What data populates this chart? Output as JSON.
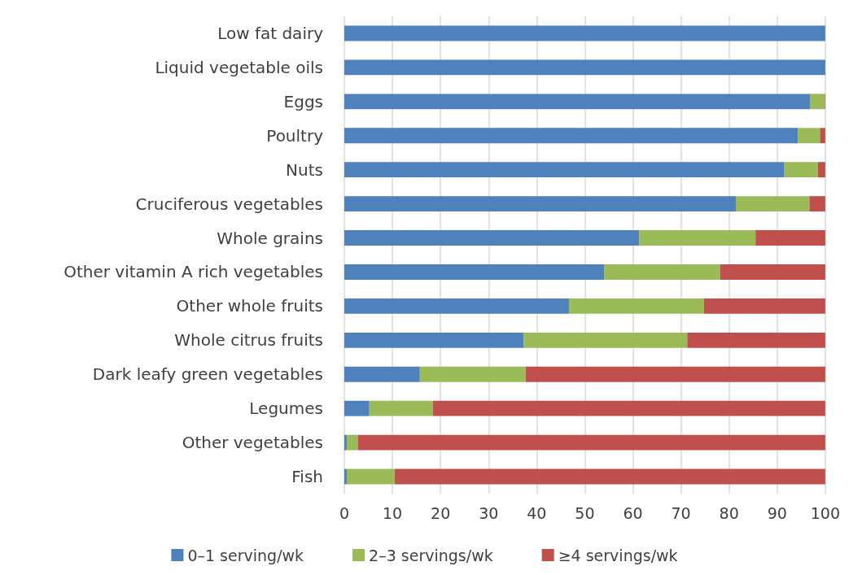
{
  "chart_data": {
    "type": "bar",
    "orientation": "horizontal",
    "stacked": true,
    "categories": [
      "Low fat dairy",
      "Liquid vegetable oils",
      "Eggs",
      "Poultry",
      "Nuts",
      "Cruciferous vegetables",
      "Whole grains",
      "Other vitamin A rich vegetables",
      "Other whole fruits",
      "Whole citrus fruits",
      "Dark leafy green vegetables",
      "Legumes",
      "Other vegetables",
      "Fish"
    ],
    "series": [
      {
        "name": "0–1 serving/wk",
        "color": "#4f81bd",
        "values": [
          100,
          100,
          96.8,
          94.3,
          91.5,
          81.4,
          61.3,
          54.0,
          46.7,
          37.3,
          15.7,
          5.2,
          0.5,
          0.5
        ]
      },
      {
        "name": "2–3 servings/wk",
        "color": "#9bbb59",
        "values": [
          0,
          0,
          3.1,
          4.6,
          7.0,
          15.3,
          24.2,
          24.1,
          28.1,
          34.0,
          22.0,
          13.2,
          2.3,
          10.0
        ]
      },
      {
        "name": "≥4 servings/wk",
        "color": "#c0504d",
        "values": [
          0,
          0,
          0.1,
          1.1,
          1.5,
          3.3,
          14.5,
          21.9,
          25.2,
          28.7,
          62.3,
          81.6,
          97.2,
          89.5
        ]
      }
    ],
    "xlim": [
      0,
      100
    ],
    "xticks": [
      0,
      10,
      20,
      30,
      40,
      50,
      60,
      70,
      80,
      90,
      100
    ],
    "grid": "x",
    "legend": "bottom"
  }
}
